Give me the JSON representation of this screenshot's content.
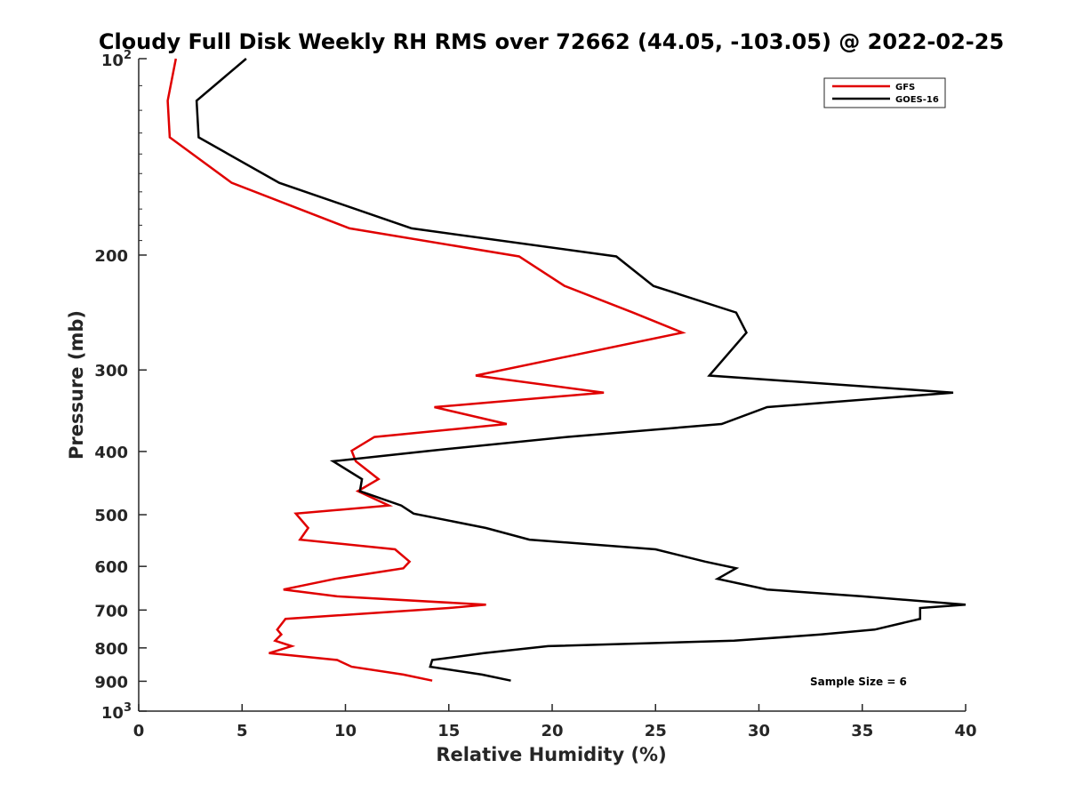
{
  "chart_data": {
    "type": "line",
    "title": "Cloudy Full Disk Weekly RH RMS over 72662 (44.05, -103.05) @ 2022-02-25",
    "xlabel": "Relative Humidity (%)",
    "ylabel": "Pressure (mb)",
    "xlim": [
      0,
      40
    ],
    "ylim": [
      100,
      1000
    ],
    "y_scale": "log",
    "y_reversed": true,
    "grid": false,
    "legend_position": "top-right",
    "x_ticks": [
      "0",
      "5",
      "10",
      "15",
      "20",
      "25",
      "30",
      "35",
      "40"
    ],
    "y_ticks": [
      {
        "value": 100,
        "base": "10",
        "exp": "2"
      },
      {
        "value": 200,
        "label": "200"
      },
      {
        "value": 300,
        "label": "300"
      },
      {
        "value": 400,
        "label": "400"
      },
      {
        "value": 500,
        "label": "500"
      },
      {
        "value": 600,
        "label": "600"
      },
      {
        "value": 700,
        "label": "700"
      },
      {
        "value": 800,
        "label": "800"
      },
      {
        "value": 900,
        "label": "900"
      },
      {
        "value": 1000,
        "base": "10",
        "exp": "3"
      }
    ],
    "annotation": "Sample Size = 6",
    "series": [
      {
        "name": "GFS",
        "color": "#e00000",
        "points": [
          [
            1.8,
            100
          ],
          [
            1.4,
            116
          ],
          [
            1.5,
            132
          ],
          [
            4.5,
            155
          ],
          [
            10.2,
            182
          ],
          [
            18.4,
            201
          ],
          [
            20.6,
            223
          ],
          [
            23.9,
            245
          ],
          [
            26.3,
            263
          ],
          [
            16.3,
            306
          ],
          [
            22.5,
            325
          ],
          [
            14.3,
            342
          ],
          [
            17.8,
            363
          ],
          [
            11.4,
            380
          ],
          [
            10.3,
            399
          ],
          [
            10.5,
            414
          ],
          [
            11.6,
            441
          ],
          [
            10.6,
            460
          ],
          [
            12.1,
            484
          ],
          [
            7.6,
            498
          ],
          [
            8.2,
            524
          ],
          [
            7.8,
            546
          ],
          [
            12.4,
            565
          ],
          [
            13.1,
            590
          ],
          [
            12.8,
            604
          ],
          [
            9.5,
            627
          ],
          [
            7.0,
            651
          ],
          [
            9.6,
            667
          ],
          [
            16.8,
            687
          ],
          [
            15.0,
            695
          ],
          [
            7.1,
            722
          ],
          [
            6.7,
            750
          ],
          [
            6.9,
            763
          ],
          [
            6.6,
            780
          ],
          [
            7.4,
            795
          ],
          [
            6.3,
            815
          ],
          [
            9.6,
            835
          ],
          [
            10.3,
            855
          ],
          [
            12.8,
            879
          ],
          [
            14.2,
            898
          ]
        ]
      },
      {
        "name": "GOES-16",
        "color": "#000000",
        "points": [
          [
            5.2,
            100
          ],
          [
            2.8,
            116
          ],
          [
            2.9,
            132
          ],
          [
            6.8,
            155
          ],
          [
            13.2,
            182
          ],
          [
            23.1,
            201
          ],
          [
            24.9,
            223
          ],
          [
            28.9,
            245
          ],
          [
            29.4,
            263
          ],
          [
            27.6,
            306
          ],
          [
            39.4,
            325
          ],
          [
            30.4,
            342
          ],
          [
            28.2,
            363
          ],
          [
            20.7,
            380
          ],
          [
            14.1,
            399
          ],
          [
            9.4,
            414
          ],
          [
            10.8,
            441
          ],
          [
            10.7,
            460
          ],
          [
            12.7,
            484
          ],
          [
            13.3,
            498
          ],
          [
            16.8,
            524
          ],
          [
            18.9,
            546
          ],
          [
            25.0,
            565
          ],
          [
            27.4,
            590
          ],
          [
            28.9,
            604
          ],
          [
            28.0,
            627
          ],
          [
            30.4,
            651
          ],
          [
            35.0,
            667
          ],
          [
            40.0,
            687
          ],
          [
            37.8,
            695
          ],
          [
            37.8,
            722
          ],
          [
            35.6,
            750
          ],
          [
            33.0,
            763
          ],
          [
            28.8,
            780
          ],
          [
            19.8,
            795
          ],
          [
            16.7,
            815
          ],
          [
            14.2,
            835
          ],
          [
            14.1,
            855
          ],
          [
            16.6,
            879
          ],
          [
            18.0,
            898
          ]
        ]
      }
    ]
  }
}
